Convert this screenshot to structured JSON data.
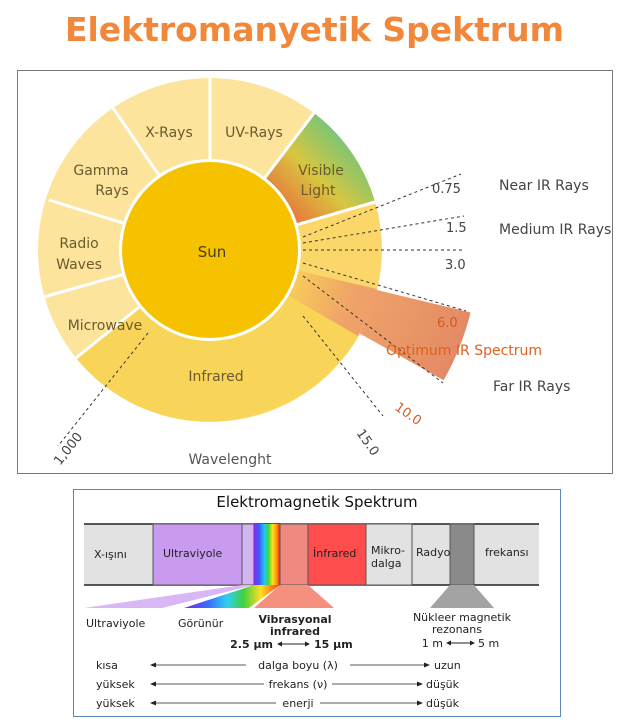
{
  "page_title": "Elektromanyetik Spektrum",
  "wheel": {
    "center_label": "Sun",
    "segments": {
      "xrays": "X-Rays",
      "uvrays": "UV-Rays",
      "gamma_line1": "Gamma",
      "gamma_line2": "Rays",
      "visible_line1": "Visible",
      "visible_line2": "Light",
      "radio_line1": "Radio",
      "radio_line2": "Waves",
      "microwave": "Microwave",
      "infrared": "Infrared"
    },
    "ticks": [
      "0.75",
      "1.5",
      "3.0",
      "6.0",
      "10.0",
      "15.0",
      "1,000"
    ],
    "ir_labels": {
      "near": "Near IR Rays",
      "medium": "Medium IR Rays",
      "optimum": "Optimum IR Spectrum",
      "far": "Far IR Rays"
    },
    "axis_label": "Wavelenght"
  },
  "spectrum": {
    "title": "Elektromagnetik Spektrum",
    "bands": {
      "xray": "X-ışını",
      "ultraviolet": "Ultraviyole",
      "infrared": "İnfrared",
      "micro_line1": "Mikro-",
      "micro_line2": "dalga",
      "radio": "Radyo",
      "frequency": "frekansı"
    },
    "below": {
      "ultraviolet": "Ultraviyole",
      "visible": "Görünür",
      "vib_line1": "Vibrasyonal",
      "vib_line2": "infrared",
      "vib_range_start": "2.5 µm",
      "vib_range_end": "15 µm",
      "nmr_line1": "Nükleer magnetik",
      "nmr_line2": "rezonans",
      "nmr_range_start": "1 m",
      "nmr_range_end": "5 m"
    },
    "rows": [
      {
        "left": "kısa",
        "middle": "dalga boyu (λ)",
        "right": "uzun"
      },
      {
        "left": "yüksek",
        "middle": "frekans (ν)",
        "right": "düşük"
      },
      {
        "left": "yüksek",
        "middle": "enerji",
        "right": "düşük"
      }
    ]
  },
  "colors": {
    "title": "#f0873a",
    "wheel_outer": "#fce49c",
    "sun": "#f6c200",
    "infrared": "#f8d458",
    "optimum": "#e8906a",
    "optimum_text": "#e0601e",
    "ultraviolet_band": "#c99bf0",
    "infrared_band": "#ff4d4d",
    "vibrational": "#f08a80"
  }
}
